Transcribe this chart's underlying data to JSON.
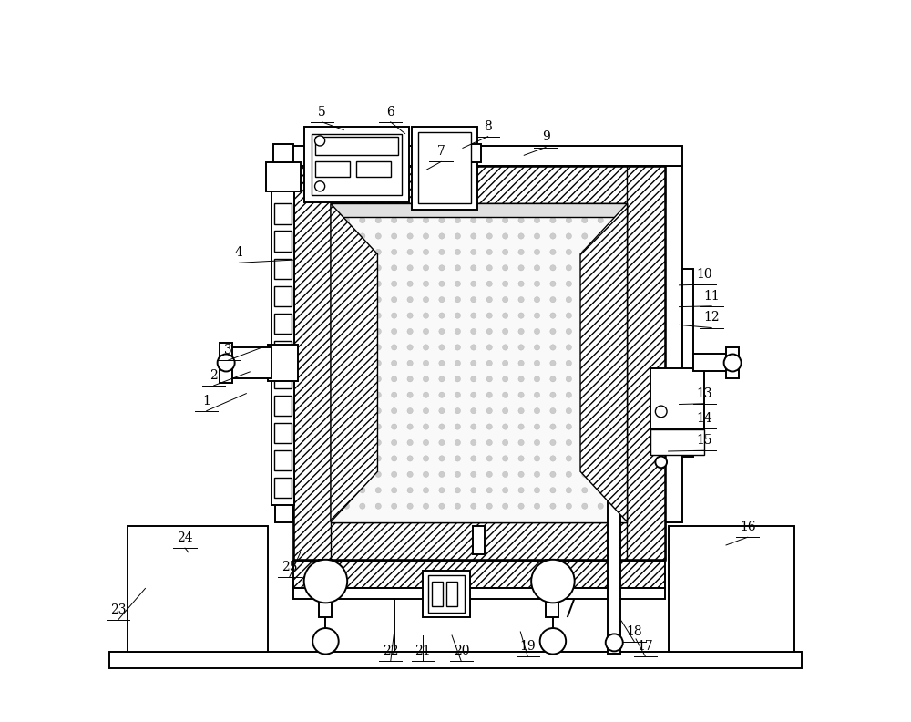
{
  "bg_color": "#ffffff",
  "lc": "#000000",
  "fig_width": 10.0,
  "fig_height": 7.92,
  "labels_info": {
    "1": [
      0.155,
      0.445,
      0.21,
      0.455
    ],
    "2": [
      0.165,
      0.48,
      0.215,
      0.485
    ],
    "3": [
      0.185,
      0.515,
      0.235,
      0.52
    ],
    "4": [
      0.2,
      0.65,
      0.275,
      0.64
    ],
    "5": [
      0.315,
      0.845,
      0.345,
      0.82
    ],
    "6": [
      0.41,
      0.845,
      0.43,
      0.815
    ],
    "7": [
      0.48,
      0.79,
      0.46,
      0.765
    ],
    "8": [
      0.545,
      0.825,
      0.51,
      0.795
    ],
    "9": [
      0.625,
      0.81,
      0.595,
      0.785
    ],
    "10": [
      0.845,
      0.62,
      0.81,
      0.605
    ],
    "11": [
      0.855,
      0.59,
      0.81,
      0.575
    ],
    "12": [
      0.855,
      0.56,
      0.81,
      0.55
    ],
    "13": [
      0.845,
      0.455,
      0.81,
      0.44
    ],
    "14": [
      0.845,
      0.42,
      0.81,
      0.405
    ],
    "15": [
      0.845,
      0.39,
      0.795,
      0.375
    ],
    "16": [
      0.905,
      0.27,
      0.875,
      0.245
    ],
    "17": [
      0.763,
      0.105,
      0.75,
      0.115
    ],
    "18": [
      0.748,
      0.125,
      0.73,
      0.14
    ],
    "19": [
      0.6,
      0.105,
      0.59,
      0.125
    ],
    "20": [
      0.508,
      0.098,
      0.495,
      0.12
    ],
    "21": [
      0.455,
      0.098,
      0.455,
      0.12
    ],
    "22": [
      0.41,
      0.098,
      0.415,
      0.125
    ],
    "23": [
      0.032,
      0.155,
      0.07,
      0.185
    ],
    "24": [
      0.125,
      0.255,
      0.13,
      0.235
    ],
    "25": [
      0.27,
      0.215,
      0.285,
      0.235
    ]
  }
}
